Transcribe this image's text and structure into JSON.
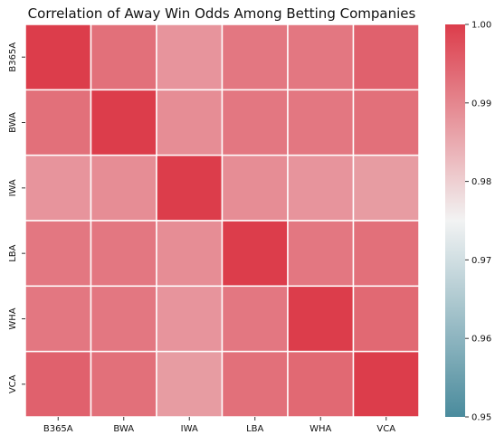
{
  "chart_data": {
    "type": "heatmap",
    "title": "Correlation of Away Win Odds Among Betting Companies",
    "xlabel": "",
    "ylabel": "",
    "x_categories": [
      "B365A",
      "BWA",
      "IWA",
      "LBA",
      "WHA",
      "VCA"
    ],
    "y_categories": [
      "B365A",
      "BWA",
      "IWA",
      "LBA",
      "WHA",
      "VCA"
    ],
    "values": [
      [
        1.0,
        0.993,
        0.988,
        0.992,
        0.992,
        0.995
      ],
      [
        0.993,
        1.0,
        0.989,
        0.992,
        0.992,
        0.993
      ],
      [
        0.988,
        0.989,
        1.0,
        0.989,
        0.988,
        0.987
      ],
      [
        0.992,
        0.992,
        0.989,
        1.0,
        0.992,
        0.993
      ],
      [
        0.992,
        0.992,
        0.988,
        0.992,
        1.0,
        0.994
      ],
      [
        0.995,
        0.993,
        0.987,
        0.993,
        0.994,
        1.0
      ]
    ],
    "colorbar": {
      "range": [
        0.95,
        1.0
      ],
      "ticks": [
        "0.95",
        "0.96",
        "0.97",
        "0.98",
        "0.99",
        "1.00"
      ],
      "colors": [
        "#4a8b9d",
        "#f2f3f3",
        "#dc3d4b"
      ]
    },
    "grid": true
  }
}
